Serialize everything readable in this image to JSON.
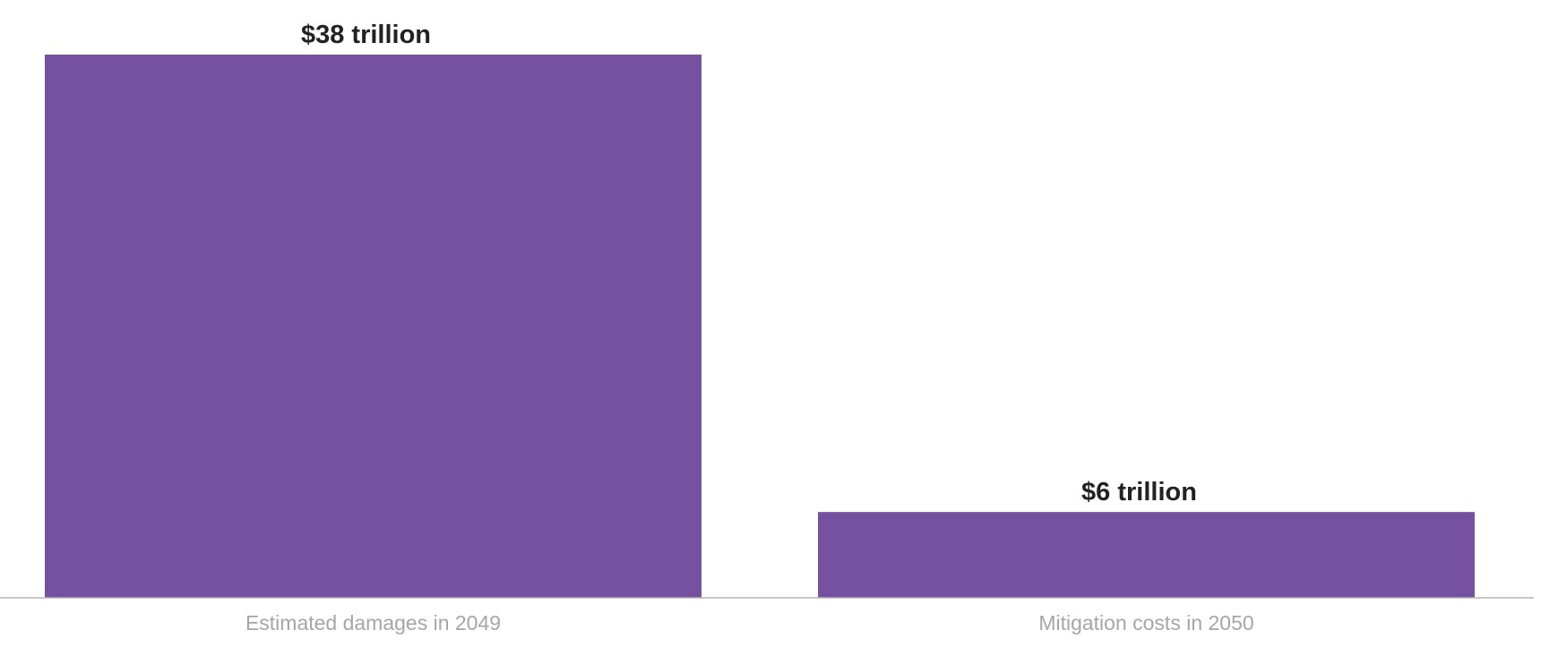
{
  "chart_data": {
    "type": "bar",
    "categories": [
      "Estimated damages in 2049",
      "Mitigation costs in 2050"
    ],
    "values": [
      38,
      6
    ],
    "value_labels": [
      "$38 trillion",
      "$6 trillion"
    ],
    "ylim": [
      0,
      38
    ],
    "grid": false,
    "colors": {
      "bar": "#76519f",
      "baseline": "#b3b3b3",
      "value_label": "#222222",
      "category_label": "#a6a6a6"
    }
  }
}
